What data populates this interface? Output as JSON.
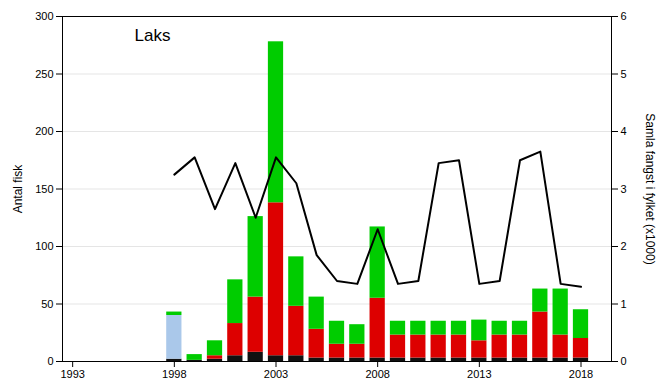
{
  "chart_data": {
    "type": "bar",
    "title": "Laks",
    "stacked": true,
    "grid": true,
    "x": [
      1998,
      1999,
      2000,
      2001,
      2002,
      2003,
      2004,
      2005,
      2006,
      2007,
      2008,
      2009,
      2010,
      2011,
      2012,
      2013,
      2014,
      2015,
      2016,
      2017,
      2018
    ],
    "xlim": [
      1992.5,
      2019.5
    ],
    "xticks": [
      1993,
      1998,
      2003,
      2008,
      2013,
      2018
    ],
    "ylabel": "Antal fisk",
    "ylim": [
      0,
      300
    ],
    "yticks": [
      0,
      50,
      100,
      150,
      200,
      250,
      300
    ],
    "y2label": "Samla fangst i fylket (x1000)",
    "y2lim": [
      0,
      6
    ],
    "y2ticks": [
      0,
      1,
      2,
      3,
      4,
      5,
      6
    ],
    "series": [
      {
        "color": "#111111",
        "values": [
          2,
          1,
          2,
          5,
          8,
          5,
          5,
          3,
          3,
          3,
          3,
          3,
          3,
          3,
          3,
          3,
          3,
          3,
          3,
          3,
          3
        ]
      },
      {
        "color": "#aac8ea",
        "values": [
          38,
          0,
          0,
          0,
          0,
          0,
          0,
          0,
          0,
          0,
          0,
          0,
          0,
          0,
          0,
          0,
          0,
          0,
          0,
          0,
          0
        ]
      },
      {
        "color": "#dd0000",
        "values": [
          0,
          0,
          3,
          28,
          48,
          133,
          43,
          25,
          12,
          12,
          52,
          20,
          20,
          20,
          20,
          15,
          20,
          20,
          40,
          20,
          17
        ]
      },
      {
        "color": "#00cc00",
        "values": [
          3,
          5,
          13,
          38,
          70,
          140,
          43,
          28,
          20,
          17,
          62,
          12,
          12,
          12,
          12,
          18,
          12,
          12,
          20,
          40,
          25
        ]
      },
      {
        "type": "line",
        "axis": "y2",
        "color": "#000000",
        "values": [
          3.25,
          3.55,
          2.65,
          3.45,
          2.5,
          3.55,
          3.1,
          1.85,
          1.4,
          1.35,
          2.3,
          1.35,
          1.4,
          3.45,
          3.5,
          1.35,
          1.4,
          3.5,
          3.65,
          1.35,
          1.3
        ]
      }
    ]
  }
}
